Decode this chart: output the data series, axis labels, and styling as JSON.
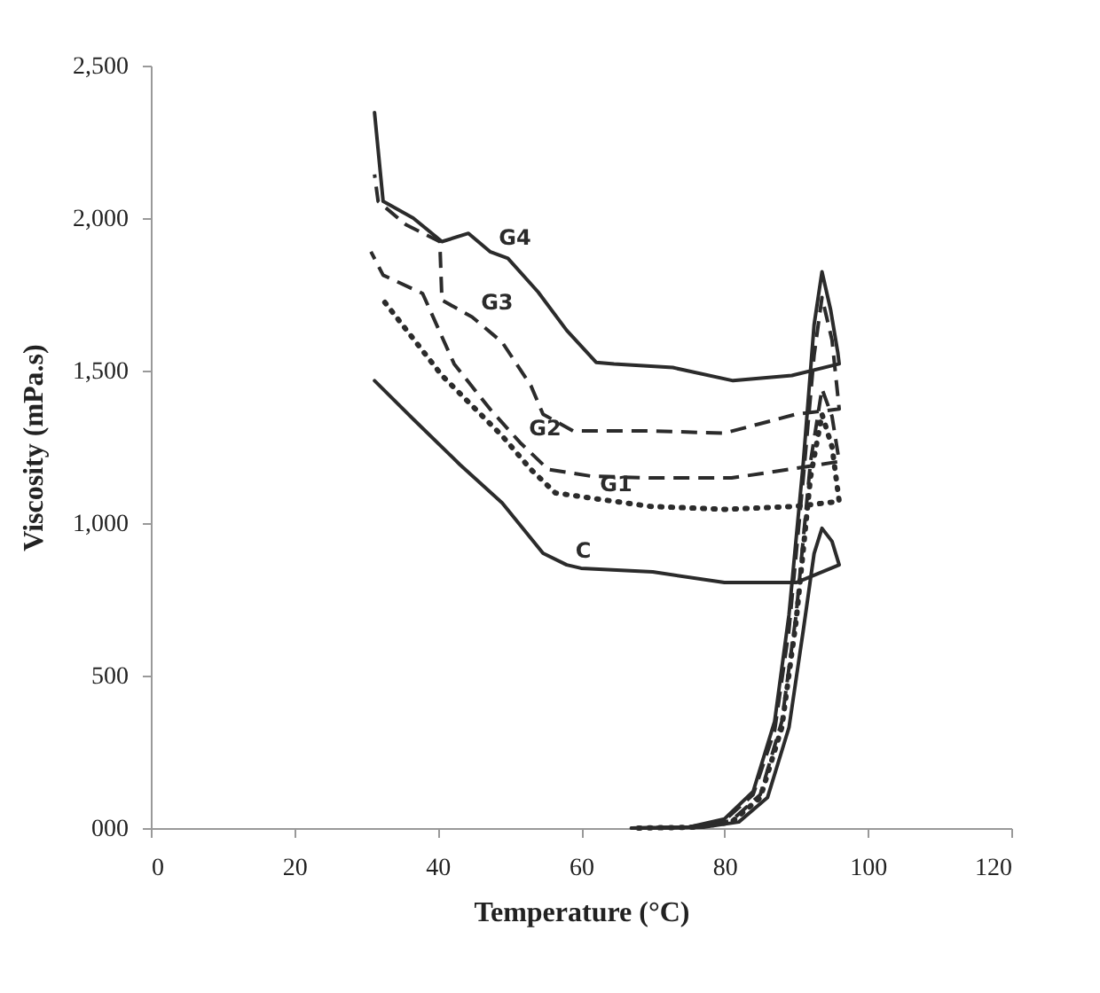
{
  "chart_data": {
    "type": "line",
    "xlabel": "Temperature (°C)",
    "ylabel": "Viscosity (mPa.s)",
    "xlim": [
      0,
      120
    ],
    "xticks": [
      0,
      20,
      40,
      60,
      80,
      100,
      120
    ],
    "ylim": [
      0,
      2500
    ],
    "yticks": [
      {
        "value": 0,
        "label": "000"
      },
      {
        "value": 500,
        "label": "500"
      },
      {
        "value": 1000,
        "label": "1,000"
      },
      {
        "value": 1500,
        "label": "1,500"
      },
      {
        "value": 2000,
        "label": "2,000"
      },
      {
        "value": 2500,
        "label": "2,500"
      }
    ],
    "grid": false,
    "marker": "none",
    "series": [
      {
        "name": "G4",
        "color": "#2b2b2b",
        "line_style": "solid",
        "x": [
          67,
          75,
          80,
          84,
          87,
          89,
          91,
          92.5,
          93.6,
          94.8,
          95.8,
          96,
          89.4,
          81.2,
          72.8,
          64.6,
          62.1,
          58,
          54,
          49.8,
          47.3,
          44.3,
          40.6,
          36.6,
          32.4,
          31.2
        ],
        "values": [
          0,
          3,
          30,
          120,
          350,
          700,
          1200,
          1650,
          1824,
          1700,
          1560,
          1522,
          1484,
          1467,
          1510,
          1522,
          1527,
          1632,
          1758,
          1868,
          1890,
          1950,
          1923,
          2000,
          2055,
          2346
        ]
      },
      {
        "name": "G3",
        "color": "#2b2b2b",
        "line_style": "dashed",
        "x": [
          67,
          75,
          80,
          84,
          87,
          89,
          91,
          92.5,
          93.6,
          95,
          96,
          90,
          80,
          69.6,
          58.9,
          54.7,
          53,
          49,
          44.8,
          40.6,
          40.3,
          35.6,
          31.7,
          31.2
        ],
        "values": [
          0,
          3,
          25,
          110,
          320,
          650,
          1150,
          1550,
          1740,
          1600,
          1374,
          1357,
          1295,
          1302,
          1302,
          1357,
          1451,
          1593,
          1676,
          1731,
          1923,
          1978,
          2055,
          2143
        ]
      },
      {
        "name": "G2",
        "color": "#2b2b2b",
        "line_style": "dashed",
        "x": [
          68,
          76,
          81,
          85,
          88,
          90,
          92,
          93.6,
          95,
          96,
          89,
          81,
          69.6,
          61.4,
          55.4,
          51.5,
          47.3,
          42.3,
          37.9,
          32.4,
          30.7
        ],
        "values": [
          0,
          3,
          25,
          110,
          350,
          700,
          1200,
          1440,
          1350,
          1202,
          1176,
          1148,
          1148,
          1154,
          1176,
          1264,
          1374,
          1522,
          1753,
          1813,
          1890
        ]
      },
      {
        "name": "G1",
        "color": "#2b2b2b",
        "line_style": "dotted",
        "x": [
          68,
          76,
          81,
          85,
          88,
          90,
          92,
          93.6,
          95,
          96,
          90,
          80,
          69.6,
          61.4,
          56.4,
          53,
          49,
          40.6,
          32.4
        ],
        "values": [
          0,
          3,
          20,
          100,
          330,
          680,
          1150,
          1357,
          1250,
          1071,
          1055,
          1045,
          1055,
          1082,
          1099,
          1176,
          1286,
          1484,
          1731
        ]
      },
      {
        "name": "C",
        "color": "#2b2b2b",
        "line_style": "solid",
        "x": [
          69,
          77,
          82,
          86,
          89,
          91,
          92.5,
          93.6,
          95,
          96,
          90,
          80,
          70,
          60,
          58,
          54.7,
          49,
          43.1,
          36.6,
          31.2
        ],
        "values": [
          0,
          3,
          20,
          100,
          330,
          650,
          900,
          983,
          940,
          863,
          805,
          805,
          840,
          852,
          863,
          901,
          1066,
          1192,
          1341,
          1467
        ]
      }
    ]
  }
}
